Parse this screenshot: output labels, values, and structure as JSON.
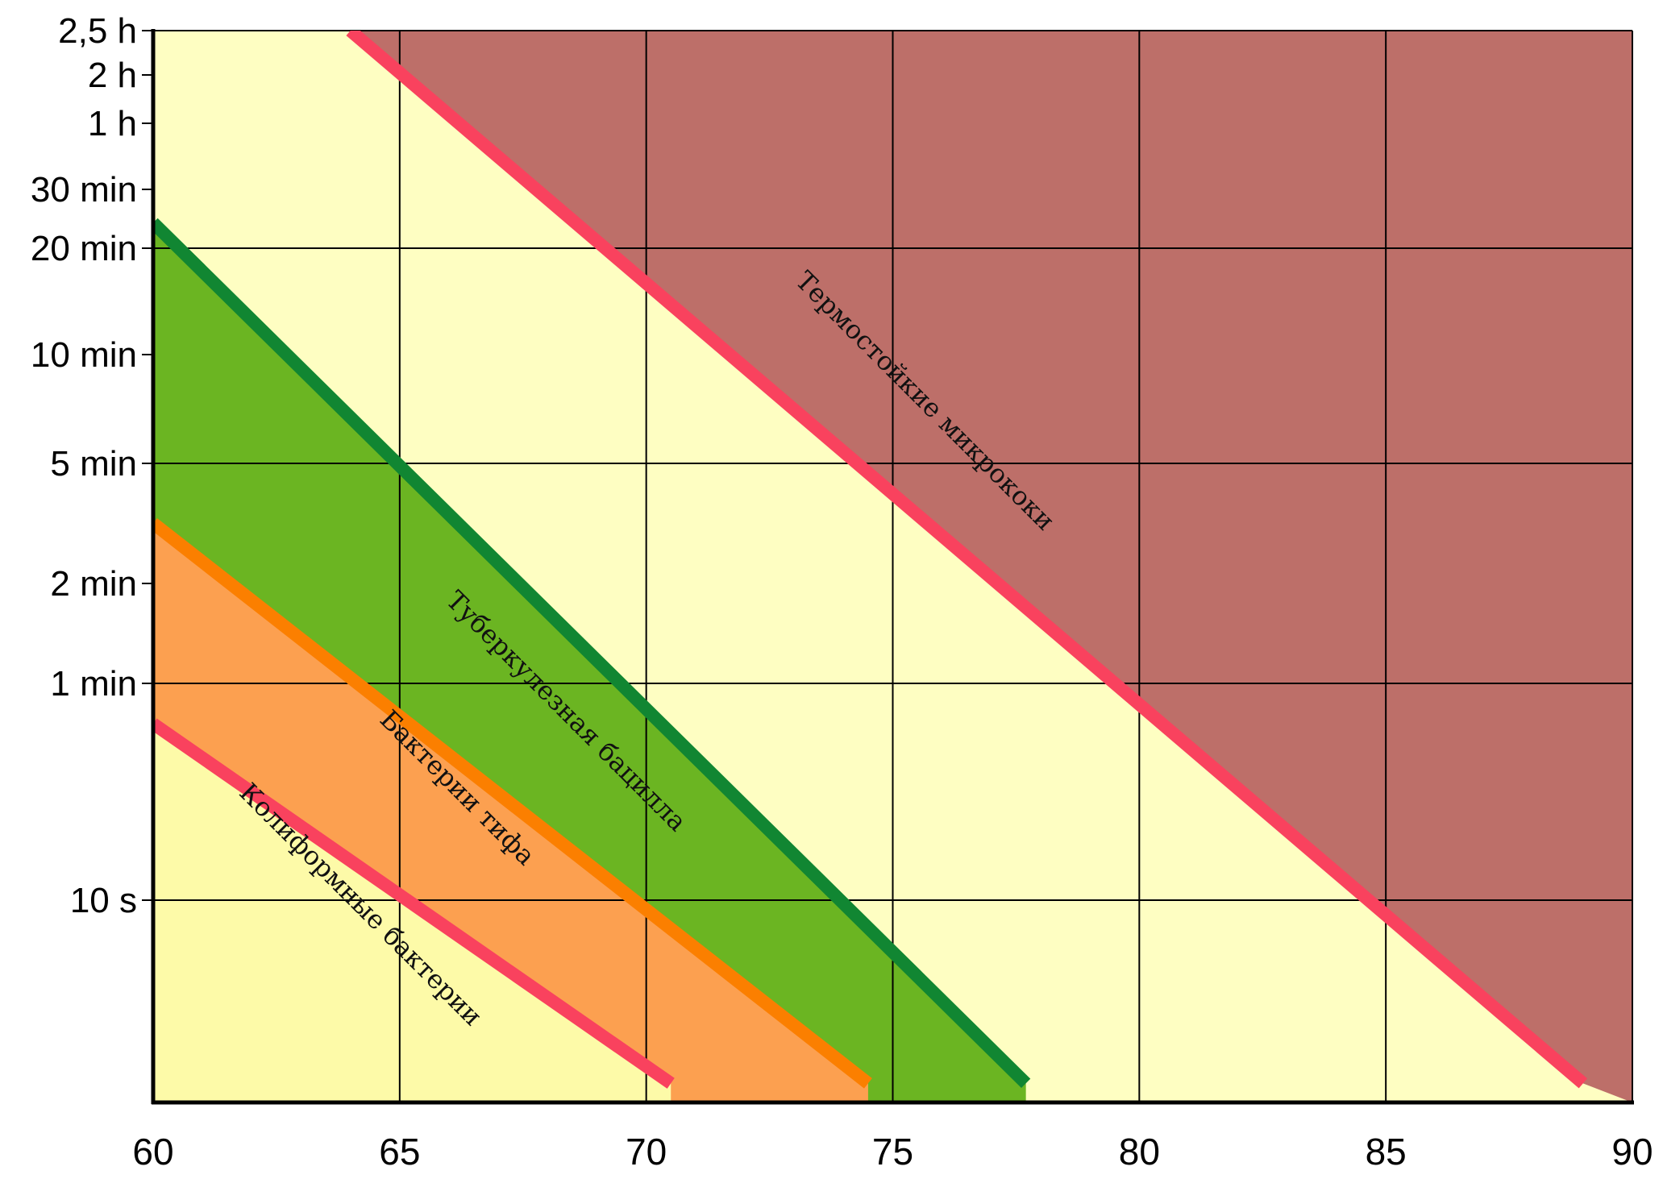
{
  "chart_data": {
    "type": "area",
    "title": "",
    "xlabel": "",
    "ylabel": "",
    "x_axis": {
      "min": 60,
      "max": 90,
      "ticks": [
        60,
        65,
        70,
        75,
        80,
        85,
        90
      ],
      "unit": "°C"
    },
    "y_axis": {
      "scale": "log",
      "unit": "seconds",
      "ticks": [
        {
          "label": "2,5 h",
          "seconds": 9000
        },
        {
          "label": "2 h",
          "seconds": 7200
        },
        {
          "label": "1 h",
          "seconds": 3600
        },
        {
          "label": "30 min",
          "seconds": 1800
        },
        {
          "label": "20 min",
          "seconds": 1200
        },
        {
          "label": "10 min",
          "seconds": 600
        },
        {
          "label": "5 min",
          "seconds": 300
        },
        {
          "label": "2 min",
          "seconds": 120
        },
        {
          "label": "1 min",
          "seconds": 60
        },
        {
          "label": "10 s",
          "seconds": 10
        }
      ]
    },
    "grid": true,
    "bands": [
      {
        "name": "Колиформные бактерии",
        "x": [
          60,
          70.5
        ],
        "y_seconds": [
          43,
          2.2
        ],
        "fill": "#fdfaa8",
        "line_color": "#f9425e"
      },
      {
        "name": "Бактерии тифа",
        "x": [
          60,
          74.5
        ],
        "y_seconds": [
          190,
          2.2
        ],
        "fill": "#fca050",
        "line_color": "#fb7f00"
      },
      {
        "name": "Туберкулезная бацилла",
        "x": [
          60,
          77.7
        ],
        "y_seconds": [
          1430,
          2.2
        ],
        "fill": "#6bb522",
        "line_color": "#118632"
      },
      {
        "name": "Термостойкие микрококи",
        "x": [
          64,
          89
        ],
        "y_seconds": [
          9000,
          2.2
        ],
        "fill": "#bd6f69",
        "line_color": "#f9425e"
      }
    ],
    "background_fill": "#fefec2",
    "colors": {
      "coliform_fill": "#fdfaa8",
      "typhoid_fill": "#fca050",
      "typhoid_line": "#fb7f00",
      "tuberculosis_fill": "#6bb522",
      "tuberculosis_line": "#118632",
      "micrococci_fill": "#bd6f69",
      "red_line": "#f9425e",
      "background": "#fefec2"
    }
  }
}
